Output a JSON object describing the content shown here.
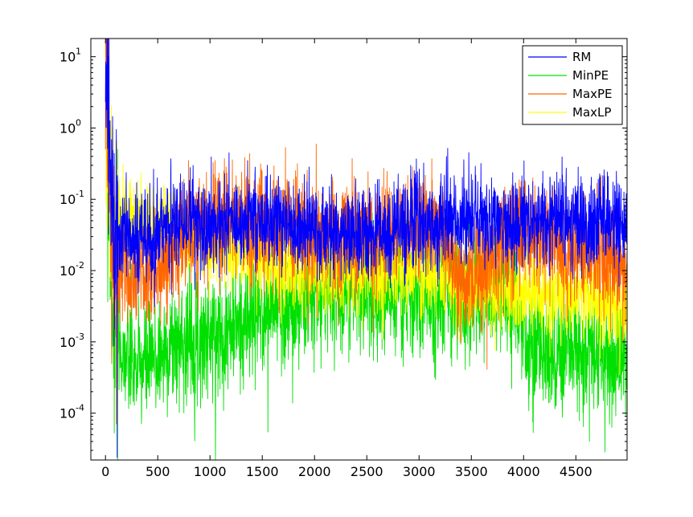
{
  "chart_data": {
    "type": "line",
    "title": "",
    "xlabel": "",
    "ylabel": "",
    "xlim": [
      -140,
      4990
    ],
    "ylim": [
      2.2e-05,
      18
    ],
    "yscale": "log",
    "grid": false,
    "legend_position": "top-right",
    "x_ticks": [
      0,
      500,
      1000,
      1500,
      2000,
      2500,
      3000,
      3500,
      4000,
      4500
    ],
    "x_tick_labels": [
      "0",
      "500",
      "1000",
      "1500",
      "2000",
      "2500",
      "3000",
      "3500",
      "4000",
      "4500"
    ],
    "y_ticks": [
      0.0001,
      0.001,
      0.01,
      0.1,
      1,
      10
    ],
    "y_tick_labels": [
      {
        "base": "10",
        "exp": "-4"
      },
      {
        "base": "10",
        "exp": "-3"
      },
      {
        "base": "10",
        "exp": "-2"
      },
      {
        "base": "10",
        "exp": "-1"
      },
      {
        "base": "10",
        "exp": "0"
      },
      {
        "base": "10",
        "exp": "1"
      }
    ],
    "series": [
      {
        "name": "RM",
        "color": "#0000ff",
        "x": [
          0,
          20,
          40,
          60,
          80,
          100,
          150,
          200,
          250,
          300,
          400,
          500,
          600,
          700,
          800,
          900,
          1000,
          1200,
          1400,
          1600,
          1800,
          2000,
          2200,
          2400,
          2600,
          2800,
          3000,
          3200,
          3400,
          3600,
          3800,
          4000,
          4200,
          4400,
          4600,
          4800,
          4990
        ],
        "y": [
          15,
          3,
          0.5,
          0.05,
          0.02,
          0.015,
          0.03,
          0.04,
          0.025,
          0.03,
          0.028,
          0.035,
          0.04,
          0.05,
          0.06,
          0.05,
          0.04,
          0.045,
          0.05,
          0.045,
          0.05,
          0.04,
          0.03,
          0.035,
          0.03,
          0.04,
          0.05,
          0.045,
          0.05,
          0.06,
          0.05,
          0.045,
          0.05,
          0.05,
          0.045,
          0.05,
          0.045
        ]
      },
      {
        "name": "MinPE",
        "color": "#00e000",
        "x": [
          0,
          20,
          40,
          60,
          80,
          100,
          150,
          200,
          250,
          300,
          400,
          500,
          600,
          700,
          800,
          900,
          1000,
          1200,
          1400,
          1600,
          1800,
          2000,
          2200,
          2400,
          2600,
          2800,
          3000,
          3200,
          3400,
          3600,
          3800,
          3900,
          4000,
          4200,
          4400,
          4600,
          4800,
          4990
        ],
        "y": [
          5,
          0.3,
          0.05,
          0.01,
          0.003,
          0.0015,
          0.0008,
          0.0006,
          0.0005,
          0.0004,
          0.0005,
          0.0006,
          0.0008,
          0.001,
          0.0012,
          0.0012,
          0.0012,
          0.0015,
          0.002,
          0.003,
          0.003,
          0.004,
          0.005,
          0.006,
          0.005,
          0.005,
          0.004,
          0.004,
          0.004,
          0.004,
          0.005,
          0.003,
          0.001,
          0.0008,
          0.0007,
          0.0007,
          0.0006,
          0.0006
        ]
      },
      {
        "name": "MaxPE",
        "color": "#ff6600",
        "x": [
          0,
          20,
          40,
          60,
          80,
          100,
          150,
          200,
          250,
          300,
          400,
          500,
          600,
          700,
          800,
          900,
          1000,
          1200,
          1400,
          1600,
          1800,
          2000,
          2200,
          2400,
          2600,
          2800,
          3000,
          3200,
          3400,
          3600,
          3800,
          4000,
          4200,
          4400,
          4600,
          4800,
          4990
        ],
        "y": [
          18,
          4,
          0.3,
          0.02,
          0.006,
          0.005,
          0.01,
          0.008,
          0.007,
          0.008,
          0.009,
          0.01,
          0.012,
          0.02,
          0.03,
          0.04,
          0.04,
          0.05,
          0.05,
          0.04,
          0.04,
          0.03,
          0.03,
          0.03,
          0.03,
          0.04,
          0.04,
          0.05,
          0.005,
          0.01,
          0.02,
          0.03,
          0.03,
          0.02,
          0.02,
          0.015,
          0.01
        ]
      },
      {
        "name": "MaxLP",
        "color": "#ffff00",
        "x": [
          0,
          20,
          40,
          60,
          80,
          100,
          150,
          200,
          250,
          300,
          400,
          500,
          600,
          700,
          800,
          900,
          1000,
          1200,
          1400,
          1600,
          1800,
          2000,
          2200,
          2400,
          2600,
          2800,
          3000,
          3200,
          3400,
          3600,
          3800,
          4000,
          4200,
          4400,
          4600,
          4800,
          4990
        ],
        "y": [
          14,
          2,
          0.2,
          0.06,
          0.04,
          0.05,
          0.05,
          0.05,
          0.06,
          0.05,
          0.04,
          0.04,
          0.035,
          0.03,
          0.03,
          0.03,
          0.03,
          0.025,
          0.02,
          0.012,
          0.01,
          0.012,
          0.01,
          0.01,
          0.01,
          0.01,
          0.01,
          0.008,
          0.006,
          0.005,
          0.005,
          0.004,
          0.005,
          0.004,
          0.005,
          0.003,
          0.0025
        ]
      }
    ]
  }
}
